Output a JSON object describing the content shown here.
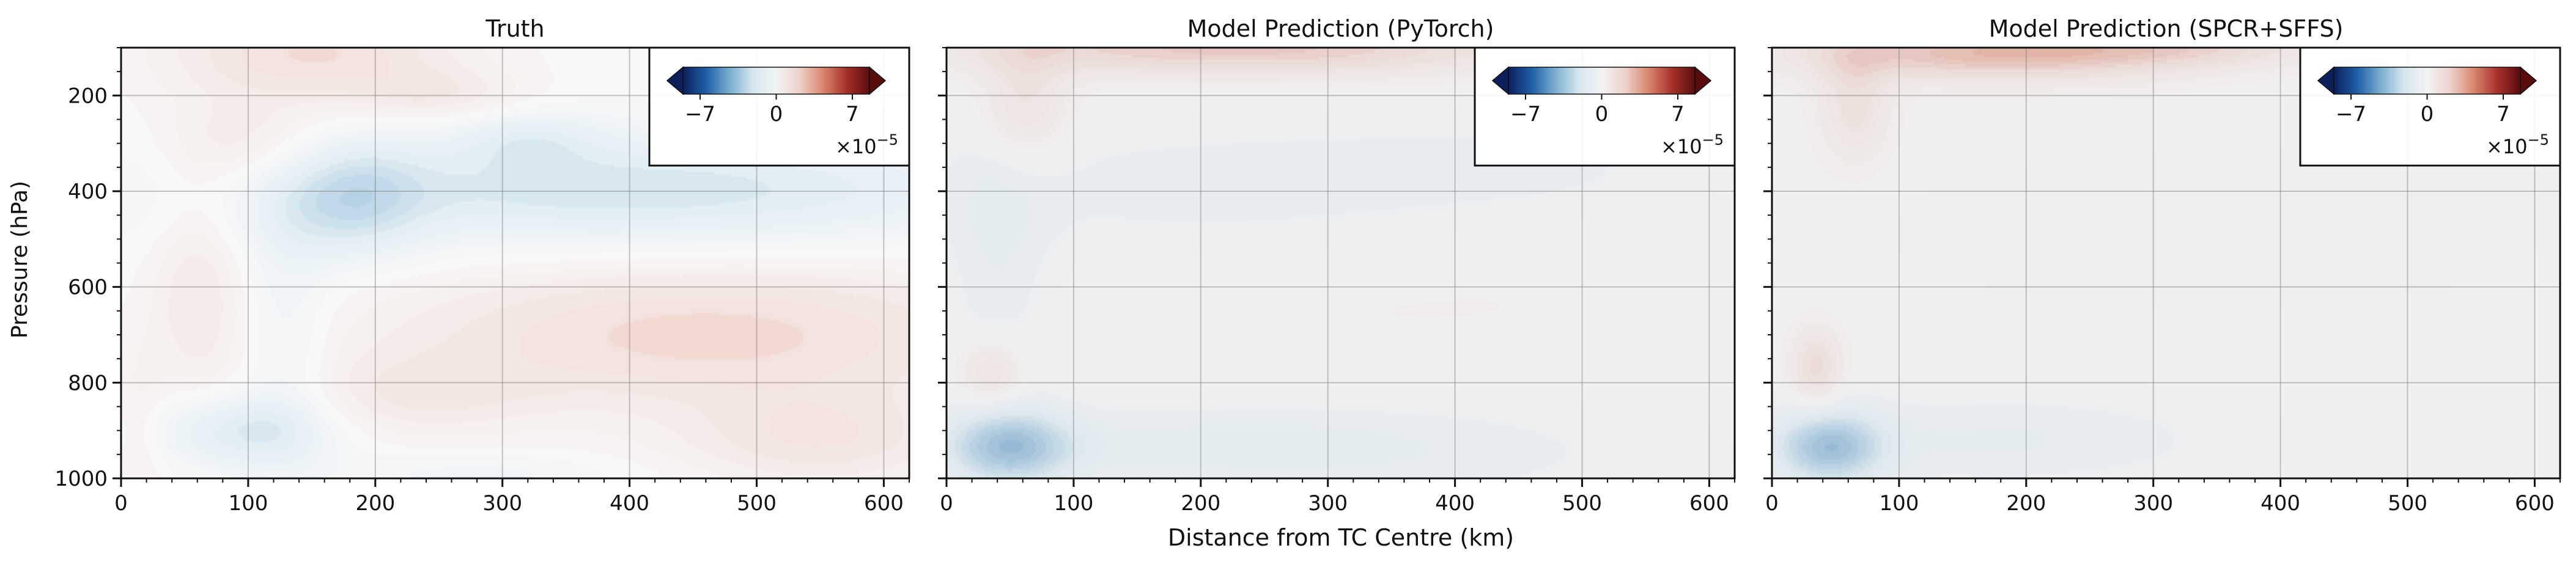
{
  "figure": {
    "ylabel": "Pressure (hPa)",
    "xlabel": "Distance from TC Centre (km)"
  },
  "colorbar": {
    "ticks": [
      "−7",
      "0",
      "7"
    ],
    "multiplier_base": "×10",
    "multiplier_exp": "−5",
    "stops": [
      "#0b1f5c",
      "#1f5fa8",
      "#7aaecf",
      "#d6e7ef",
      "#f3f3f3",
      "#ecd3cb",
      "#d9876f",
      "#a8322b",
      "#5a0c0c"
    ]
  },
  "chart_data": [
    {
      "type": "heatmap",
      "title": "Truth",
      "xlabel": "",
      "ylabel": "Pressure (hPa)",
      "xlim": [
        0,
        620
      ],
      "ylim": [
        1000,
        100
      ],
      "xticks": [
        0,
        100,
        200,
        300,
        400,
        500,
        600
      ],
      "yticks": [
        200,
        400,
        600,
        800,
        1000
      ],
      "grid": true,
      "colorbar_placement": "top-right",
      "units": "×10^-5",
      "features": [
        {
          "x": 150,
          "p": 110,
          "sx": 80,
          "sp": 70,
          "amp": 2.8
        },
        {
          "x": 250,
          "p": 200,
          "sx": 50,
          "sp": 40,
          "amp": 1.5
        },
        {
          "x": 100,
          "p": 300,
          "sx": 45,
          "sp": 70,
          "amp": 1.8
        },
        {
          "x": 320,
          "p": 290,
          "sx": 40,
          "sp": 40,
          "amp": -1.5
        },
        {
          "x": 400,
          "p": 400,
          "sx": 220,
          "sp": 85,
          "amp": -3.2
        },
        {
          "x": 180,
          "p": 420,
          "sx": 40,
          "sp": 90,
          "amp": -2.5
        },
        {
          "x": 60,
          "p": 600,
          "sx": 25,
          "sp": 160,
          "amp": 1.6
        },
        {
          "x": 130,
          "p": 700,
          "sx": 25,
          "sp": 200,
          "amp": -1.3
        },
        {
          "x": 460,
          "p": 700,
          "sx": 180,
          "sp": 110,
          "amp": 3.0
        },
        {
          "x": 230,
          "p": 830,
          "sx": 70,
          "sp": 60,
          "amp": 1.4
        },
        {
          "x": 95,
          "p": 900,
          "sx": 50,
          "sp": 55,
          "amp": -2.8
        },
        {
          "x": 280,
          "p": 990,
          "sx": 80,
          "sp": 30,
          "amp": -1.0
        },
        {
          "x": 550,
          "p": 920,
          "sx": 80,
          "sp": 70,
          "amp": 2.0
        },
        {
          "x": 15,
          "p": 900,
          "sx": 15,
          "sp": 120,
          "amp": 1.0
        }
      ]
    },
    {
      "type": "heatmap",
      "title": "Model Prediction (PyTorch)",
      "xlabel": "Distance from TC Centre (km)",
      "ylabel": "",
      "xlim": [
        0,
        620
      ],
      "ylim": [
        1000,
        100
      ],
      "xticks": [
        0,
        100,
        200,
        300,
        400,
        500,
        600
      ],
      "yticks": [
        200,
        400,
        600,
        800,
        1000
      ],
      "grid": true,
      "colorbar_placement": "top-right",
      "units": "×10^-5",
      "features": [
        {
          "x": 230,
          "p": 100,
          "sx": 160,
          "sp": 40,
          "amp": 3.5
        },
        {
          "x": 60,
          "p": 220,
          "sx": 25,
          "sp": 90,
          "amp": 2.2
        },
        {
          "x": 40,
          "p": 550,
          "sx": 30,
          "sp": 250,
          "amp": -1.2
        },
        {
          "x": 200,
          "p": 400,
          "sx": 160,
          "sp": 100,
          "amp": -1.1
        },
        {
          "x": 450,
          "p": 350,
          "sx": 120,
          "sp": 70,
          "amp": -0.8
        },
        {
          "x": 35,
          "p": 780,
          "sx": 18,
          "sp": 50,
          "amp": 2.4
        },
        {
          "x": 50,
          "p": 935,
          "sx": 35,
          "sp": 55,
          "amp": -4.2
        },
        {
          "x": 190,
          "p": 930,
          "sx": 150,
          "sp": 60,
          "amp": -1.3
        },
        {
          "x": 400,
          "p": 950,
          "sx": 150,
          "sp": 90,
          "amp": -0.7
        },
        {
          "x": 350,
          "p": 600,
          "sx": 250,
          "sp": 150,
          "amp": 0.3
        }
      ]
    },
    {
      "type": "heatmap",
      "title": "Model Prediction (SPCR+SFFS)",
      "xlabel": "",
      "ylabel": "",
      "xlim": [
        0,
        620
      ],
      "ylim": [
        1000,
        100
      ],
      "xticks": [
        0,
        100,
        200,
        300,
        400,
        500,
        600
      ],
      "yticks": [
        200,
        400,
        600,
        800,
        1000
      ],
      "grid": true,
      "colorbar_placement": "top-right",
      "units": "×10^-5",
      "features": [
        {
          "x": 180,
          "p": 110,
          "sx": 110,
          "sp": 40,
          "amp": 4.2
        },
        {
          "x": 330,
          "p": 100,
          "sx": 80,
          "sp": 25,
          "amp": 1.6
        },
        {
          "x": 65,
          "p": 220,
          "sx": 20,
          "sp": 90,
          "amp": 2.0
        },
        {
          "x": 35,
          "p": 770,
          "sx": 14,
          "sp": 60,
          "amp": 2.5
        },
        {
          "x": 45,
          "p": 935,
          "sx": 30,
          "sp": 55,
          "amp": -4.6
        },
        {
          "x": 180,
          "p": 920,
          "sx": 130,
          "sp": 70,
          "amp": -1.3
        },
        {
          "x": 350,
          "p": 480,
          "sx": 180,
          "sp": 110,
          "amp": -0.7
        },
        {
          "x": 560,
          "p": 360,
          "sx": 80,
          "sp": 40,
          "amp": -0.5
        }
      ]
    }
  ]
}
